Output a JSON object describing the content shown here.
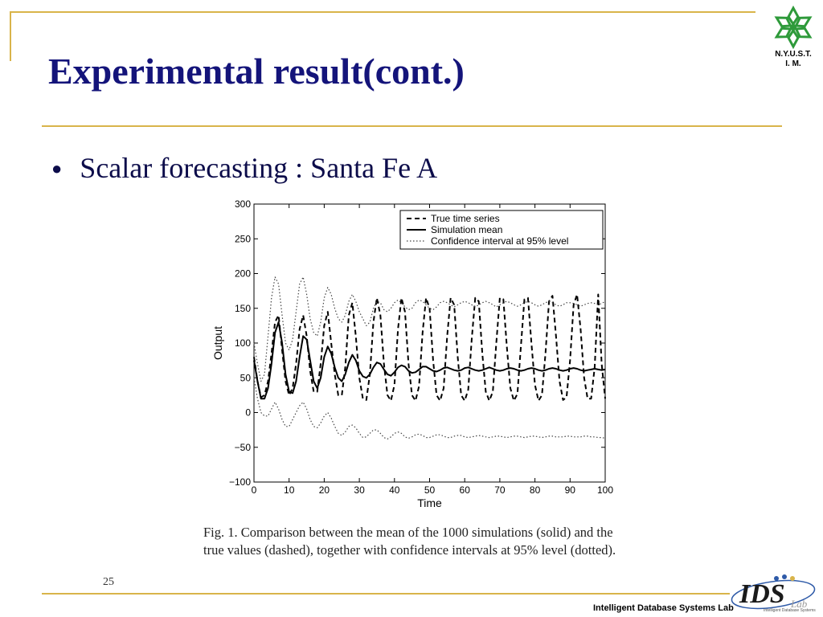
{
  "slide": {
    "title": "Experimental result(cont.)",
    "bullet": "Scalar forecasting : Santa Fe A",
    "page_number": "25",
    "logo_text_line1": "N.Y.U.S.T.",
    "logo_text_line2": "I. M.",
    "lab_label": "Intelligent Database Systems Lab",
    "ids_logo_text": "IDS",
    "ids_logo_subtext": "Intelligent Database Systems",
    "ids_logo_suffix": "Lab",
    "caption": "Fig. 1.  Comparison between the mean of the 1000 simulations (solid) and the true values (dashed), together with confidence intervals at 95% level (dotted).",
    "colors": {
      "title": "#14147a",
      "accent_line": "#d9b44a",
      "logo_green": "#2e9a3a",
      "ids_blue": "#2e5aa8"
    }
  },
  "chart_data": {
    "type": "line",
    "xlabel": "Time",
    "ylabel": "Output",
    "xlim": [
      0,
      100
    ],
    "ylim": [
      -100,
      300
    ],
    "xticks": [
      0,
      10,
      20,
      30,
      40,
      50,
      60,
      70,
      80,
      90,
      100
    ],
    "yticks": [
      -100,
      -50,
      0,
      50,
      100,
      150,
      200,
      250,
      300
    ],
    "legend_position": "top-right",
    "series": [
      {
        "name": "True time series",
        "style": "dashed",
        "x": [
          0,
          1,
          2,
          3,
          4,
          5,
          6,
          7,
          8,
          9,
          10,
          11,
          12,
          13,
          14,
          15,
          16,
          17,
          18,
          19,
          20,
          21,
          22,
          23,
          24,
          25,
          26,
          27,
          28,
          29,
          30,
          31,
          32,
          33,
          34,
          35,
          36,
          37,
          38,
          39,
          40,
          41,
          42,
          43,
          44,
          45,
          46,
          47,
          48,
          49,
          50,
          51,
          52,
          53,
          54,
          55,
          56,
          57,
          58,
          59,
          60,
          61,
          62,
          63,
          64,
          65,
          66,
          67,
          68,
          69,
          70,
          71,
          72,
          73,
          74,
          75,
          76,
          77,
          78,
          79,
          80,
          81,
          82,
          83,
          84,
          85,
          86,
          87,
          88,
          89,
          90,
          91,
          92,
          93,
          94,
          95,
          96,
          97,
          98,
          99,
          100
        ],
        "values": [
          80,
          45,
          22,
          25,
          45,
          85,
          130,
          140,
          90,
          45,
          25,
          35,
          70,
          120,
          140,
          110,
          60,
          30,
          30,
          70,
          125,
          145,
          100,
          55,
          25,
          25,
          65,
          140,
          158,
          110,
          50,
          20,
          18,
          55,
          130,
          165,
          140,
          70,
          25,
          17,
          40,
          120,
          165,
          145,
          70,
          25,
          17,
          38,
          115,
          165,
          150,
          75,
          25,
          17,
          35,
          110,
          165,
          155,
          80,
          25,
          17,
          33,
          105,
          165,
          160,
          85,
          30,
          17,
          30,
          100,
          165,
          163,
          95,
          35,
          17,
          27,
          95,
          163,
          165,
          100,
          40,
          17,
          25,
          85,
          160,
          168,
          110,
          45,
          18,
          22,
          75,
          155,
          170,
          120,
          50,
          20,
          20,
          65,
          170,
          70,
          20
        ]
      },
      {
        "name": "Simulation mean",
        "style": "solid",
        "x": [
          0,
          1,
          2,
          3,
          4,
          5,
          6,
          7,
          8,
          9,
          10,
          11,
          12,
          13,
          14,
          15,
          16,
          17,
          18,
          19,
          20,
          21,
          22,
          23,
          24,
          25,
          26,
          27,
          28,
          29,
          30,
          31,
          32,
          33,
          34,
          35,
          36,
          37,
          38,
          39,
          40,
          41,
          42,
          43,
          44,
          45,
          46,
          47,
          48,
          49,
          50,
          51,
          52,
          53,
          54,
          55,
          56,
          57,
          58,
          59,
          60,
          61,
          62,
          63,
          64,
          65,
          66,
          67,
          68,
          69,
          70,
          71,
          72,
          73,
          74,
          75,
          76,
          77,
          78,
          79,
          80,
          81,
          82,
          83,
          84,
          85,
          86,
          87,
          88,
          89,
          90,
          91,
          92,
          93,
          94,
          95,
          96,
          97,
          98,
          99,
          100
        ],
        "values": [
          75,
          45,
          20,
          20,
          35,
          70,
          115,
          130,
          100,
          55,
          30,
          28,
          45,
          80,
          110,
          105,
          75,
          45,
          35,
          50,
          80,
          95,
          85,
          65,
          50,
          45,
          55,
          72,
          83,
          75,
          60,
          52,
          50,
          55,
          65,
          72,
          70,
          62,
          55,
          53,
          58,
          65,
          68,
          66,
          60,
          57,
          58,
          62,
          66,
          66,
          63,
          60,
          59,
          61,
          64,
          65,
          63,
          61,
          60,
          61,
          64,
          65,
          63,
          61,
          60,
          61,
          63,
          65,
          63,
          61,
          60,
          61,
          63,
          64,
          63,
          61,
          60,
          61,
          63,
          64,
          63,
          61,
          60,
          61,
          63,
          64,
          63,
          61,
          60,
          61,
          63,
          64,
          63,
          61,
          60,
          61,
          62,
          63,
          62,
          61,
          62
        ]
      },
      {
        "name": "Confidence interval at 95% level",
        "style": "dotted",
        "x": [
          0,
          1,
          2,
          3,
          4,
          5,
          6,
          7,
          8,
          9,
          10,
          11,
          12,
          13,
          14,
          15,
          16,
          17,
          18,
          19,
          20,
          21,
          22,
          23,
          24,
          25,
          26,
          27,
          28,
          29,
          30,
          31,
          32,
          33,
          34,
          35,
          36,
          37,
          38,
          39,
          40,
          41,
          42,
          43,
          44,
          45,
          46,
          47,
          48,
          49,
          50,
          51,
          52,
          53,
          54,
          55,
          56,
          57,
          58,
          59,
          60,
          61,
          62,
          63,
          64,
          65,
          66,
          67,
          68,
          69,
          70,
          71,
          72,
          73,
          74,
          75,
          76,
          77,
          78,
          79,
          80,
          81,
          82,
          83,
          84,
          85,
          86,
          87,
          88,
          89,
          90,
          91,
          92,
          93,
          94,
          95,
          96,
          97,
          98,
          99,
          100
        ],
        "values": [
          100,
          70,
          45,
          55,
          110,
          165,
          195,
          185,
          140,
          100,
          90,
          105,
          145,
          185,
          195,
          170,
          135,
          115,
          110,
          130,
          165,
          180,
          170,
          150,
          135,
          130,
          140,
          160,
          170,
          160,
          145,
          135,
          125,
          130,
          150,
          160,
          158,
          148,
          145,
          150,
          158,
          162,
          158,
          152,
          148,
          150,
          158,
          162,
          160,
          155,
          150,
          148,
          152,
          158,
          160,
          158,
          155,
          152,
          155,
          158,
          160,
          158,
          155,
          152,
          155,
          158,
          160,
          158,
          155,
          152,
          155,
          158,
          160,
          158,
          155,
          153,
          155,
          158,
          160,
          158,
          155,
          153,
          155,
          158,
          160,
          158,
          155,
          153,
          155,
          158,
          158,
          157,
          155,
          153,
          155,
          157,
          158,
          157,
          155,
          157,
          160
        ]
      },
      {
        "name": "",
        "style": "dotted",
        "x": [
          0,
          1,
          2,
          3,
          4,
          5,
          6,
          7,
          8,
          9,
          10,
          11,
          12,
          13,
          14,
          15,
          16,
          17,
          18,
          19,
          20,
          21,
          22,
          23,
          24,
          25,
          26,
          27,
          28,
          29,
          30,
          31,
          32,
          33,
          34,
          35,
          36,
          37,
          38,
          39,
          40,
          41,
          42,
          43,
          44,
          45,
          46,
          47,
          48,
          49,
          50,
          51,
          52,
          53,
          54,
          55,
          56,
          57,
          58,
          59,
          60,
          61,
          62,
          63,
          64,
          65,
          66,
          67,
          68,
          69,
          70,
          71,
          72,
          73,
          74,
          75,
          76,
          77,
          78,
          79,
          80,
          81,
          82,
          83,
          84,
          85,
          86,
          87,
          88,
          89,
          90,
          91,
          92,
          93,
          94,
          95,
          96,
          97,
          98,
          99,
          100
        ],
        "values": [
          50,
          20,
          0,
          -5,
          -5,
          5,
          15,
          5,
          -10,
          -20,
          -20,
          -10,
          0,
          10,
          15,
          5,
          -10,
          -20,
          -22,
          -15,
          -5,
          0,
          -8,
          -20,
          -30,
          -33,
          -28,
          -20,
          -18,
          -22,
          -30,
          -36,
          -35,
          -30,
          -25,
          -25,
          -30,
          -36,
          -38,
          -35,
          -30,
          -28,
          -30,
          -35,
          -37,
          -35,
          -32,
          -31,
          -33,
          -36,
          -36,
          -34,
          -32,
          -32,
          -34,
          -36,
          -36,
          -34,
          -33,
          -33,
          -35,
          -36,
          -35,
          -34,
          -33,
          -34,
          -35,
          -36,
          -35,
          -34,
          -34,
          -35,
          -36,
          -35,
          -34,
          -34,
          -35,
          -36,
          -35,
          -34,
          -34,
          -35,
          -36,
          -35,
          -34,
          -34,
          -35,
          -35,
          -35,
          -34,
          -34,
          -35,
          -35,
          -35,
          -34,
          -34,
          -35,
          -35,
          -36,
          -36,
          -37
        ]
      }
    ]
  }
}
